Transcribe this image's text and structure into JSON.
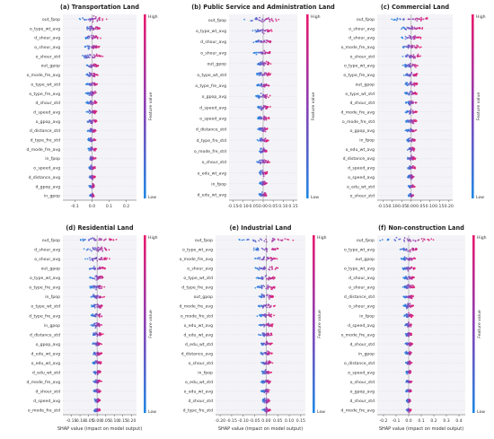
{
  "figure": {
    "colorbar": {
      "high": "High",
      "low": "Low",
      "label": "Feature value",
      "color_high": "#e8186d",
      "color_low": "#1e88e5"
    },
    "xlabel": "SHAP value (impact on model output)"
  },
  "chart_data": [
    {
      "type": "scatter",
      "title": "(a) Transportation Land",
      "xlabel": "",
      "ticks": [
        -0.1,
        0.0,
        0.1,
        0.2
      ],
      "tick_labels": [
        "-0.1",
        "0.0",
        "0.1",
        "0.2"
      ],
      "xlim": [
        -0.17,
        0.26
      ],
      "features": [
        "out_fpop",
        "o_type_wt_avg",
        "d_shour_avg",
        "o_shour_avg",
        "o_shour_std",
        "out_gpop",
        "o_mode_fre_avg",
        "o_type_wt_std",
        "o_type_fre_avg",
        "d_shour_std",
        "d_speed_avg",
        "o_gpop_avg",
        "d_distance_std",
        "d_type_fre_std",
        "d_mode_fre_avg",
        "in_fpop",
        "o_speed_avg",
        "d_distance_avg",
        "d_gpop_avg",
        "in_gpop"
      ],
      "spread": [
        0.11,
        0.07,
        0.065,
        0.06,
        0.09,
        0.05,
        0.05,
        0.045,
        0.045,
        0.045,
        0.04,
        0.04,
        0.035,
        0.035,
        0.03,
        0.03,
        0.03,
        0.025,
        0.025,
        0.02
      ]
    },
    {
      "type": "scatter",
      "title": "(b) Public Service and Administration Land",
      "xlabel": "",
      "ticks": [
        -0.15,
        -0.1,
        -0.05,
        0.0,
        0.05,
        0.1,
        0.15
      ],
      "tick_labels": [
        "-0.15",
        "-0.10",
        "-0.05",
        "0.00",
        "0.05",
        "0.10",
        "0.15"
      ],
      "xlim": [
        -0.17,
        0.17
      ],
      "features": [
        "out_fpop",
        "o_type_wt_avg",
        "d_shour_avg",
        "o_shour_avg",
        "out_gpop",
        "o_type_wt_std",
        "o_type_fre_avg",
        "o_gpop_avg",
        "d_speed_avg",
        "o_speed_avg",
        "d_distance_std",
        "d_type_fre_std",
        "o_mode_fre_std",
        "o_shour_std",
        "o_edu_wt_avg",
        "in_fpop",
        "d_edu_wt_avg"
      ],
      "spread": [
        0.12,
        0.07,
        0.065,
        0.06,
        0.05,
        0.05,
        0.045,
        0.045,
        0.04,
        0.04,
        0.035,
        0.035,
        0.03,
        0.05,
        0.03,
        0.025,
        0.025
      ]
    },
    {
      "type": "scatter",
      "title": "(c) Commercial Land",
      "xlabel": "",
      "ticks": [
        -0.15,
        -0.1,
        -0.05,
        0.0,
        0.05,
        0.1,
        0.15,
        0.2
      ],
      "tick_labels": [
        "-0.15",
        "-0.10",
        "-0.05",
        "0.00",
        "0.05",
        "0.10",
        "0.15",
        "0.20"
      ],
      "xlim": [
        -0.18,
        0.22
      ],
      "features": [
        "out_fpop",
        "o_shour_avg",
        "d_shour_avg",
        "o_mode_fre_avg",
        "o_shour_std",
        "o_type_wt_avg",
        "o_type_fre_avg",
        "out_gpop",
        "o_type_wt_std",
        "d_shour_std",
        "d_mode_fre_avg",
        "o_mode_fre_std",
        "o_gpop_avg",
        "in_fpop",
        "o_edu_wt_avg",
        "d_distance_avg",
        "d_speed_avg",
        "o_speed_avg",
        "o_edu_wt_std",
        "o_shour_std"
      ],
      "spread": [
        0.13,
        0.09,
        0.08,
        0.07,
        0.07,
        0.06,
        0.05,
        0.05,
        0.045,
        0.045,
        0.04,
        0.04,
        0.035,
        0.035,
        0.03,
        0.03,
        0.03,
        0.025,
        0.025,
        0.02
      ]
    },
    {
      "type": "scatter",
      "title": "(d) Residential Land",
      "xlabel": "SHAP value (impact on model output)",
      "ticks": [
        -0.15,
        -0.1,
        -0.05,
        0.0,
        0.05,
        0.1,
        0.15,
        0.2
      ],
      "tick_labels": [
        "-0.15",
        "-0.10",
        "-0.05",
        "0.00",
        "0.05",
        "0.10",
        "0.15",
        "0.20"
      ],
      "xlim": [
        -0.2,
        0.23
      ],
      "features": [
        "out_fpop",
        "d_shour_avg",
        "o_shour_avg",
        "out_gpop",
        "o_type_wt_avg",
        "o_type_fre_avg",
        "in_fpop",
        "o_type_wt_std",
        "d_type_fre_avg",
        "in_gpop",
        "d_distance_std",
        "o_gpop_avg",
        "d_edu_wt_avg",
        "o_edu_wt_avg",
        "d_edu_wt_std",
        "d_mode_fre_avg",
        "d_shour_std",
        "d_speed_avg",
        "o_mode_fre_std"
      ],
      "spread": [
        0.15,
        0.1,
        0.09,
        0.07,
        0.06,
        0.06,
        0.05,
        0.05,
        0.045,
        0.045,
        0.04,
        0.04,
        0.035,
        0.035,
        0.03,
        0.03,
        0.03,
        0.025,
        0.025
      ]
    },
    {
      "type": "scatter",
      "title": "(e) Industrial Land",
      "xlabel": "SHAP value (impact on model output)",
      "ticks": [
        -0.2,
        -0.15,
        -0.1,
        -0.05,
        0.0,
        0.05,
        0.1,
        0.15
      ],
      "tick_labels": [
        "-0.20",
        "-0.15",
        "-0.10",
        "-0.05",
        "0.00",
        "0.05",
        "0.10",
        "0.15"
      ],
      "xlim": [
        -0.22,
        0.17
      ],
      "features": [
        "out_fpop",
        "o_type_wt_avg",
        "o_mode_fre_avg",
        "o_shour_avg",
        "o_type_wt_std",
        "d_type_fre_avg",
        "out_gpop",
        "d_mode_fre_avg",
        "o_mode_fre_std",
        "o_edu_wt_avg",
        "d_edu_wt_avg",
        "d_edu_wt_std",
        "d_distance_avg",
        "o_shour_std",
        "in_fpop",
        "o_edu_wt_std",
        "o_edu_wt_avg",
        "d_shour_std",
        "d_type_fre_std"
      ],
      "spread": [
        0.16,
        0.08,
        0.07,
        0.07,
        0.06,
        0.06,
        0.05,
        0.05,
        0.045,
        0.045,
        0.04,
        0.04,
        0.035,
        0.035,
        0.03,
        0.03,
        0.03,
        0.025,
        0.025
      ]
    },
    {
      "type": "scatter",
      "title": "(f) Non-construction Land",
      "xlabel": "SHAP value (impact on model output)",
      "ticks": [
        -0.2,
        -0.1,
        0.0,
        0.1,
        0.2,
        0.3,
        0.4
      ],
      "tick_labels": [
        "-0.2",
        "-0.1",
        "0.0",
        "0.1",
        "0.2",
        "0.3",
        "0.4"
      ],
      "xlim": [
        -0.25,
        0.45
      ],
      "features": [
        "out_fpop",
        "o_type_wt_avg",
        "out_gpop",
        "o_type_wt_avg",
        "d_shour_avg",
        "o_shour_avg",
        "d_distance_std",
        "o_shour_avg",
        "in_fpop",
        "d_speed_avg",
        "o_mode_fre_avg",
        "d_shour_std",
        "in_gpop",
        "o_distance_std",
        "o_speed_avg",
        "o_shour_std",
        "o_gpop_avg",
        "d_shour_std",
        "d_mode_fre_avg"
      ],
      "spread": [
        0.3,
        0.1,
        0.08,
        0.07,
        0.06,
        0.06,
        0.05,
        0.05,
        0.045,
        0.045,
        0.04,
        0.04,
        0.035,
        0.035,
        0.03,
        0.03,
        0.03,
        0.025,
        0.025
      ]
    }
  ]
}
